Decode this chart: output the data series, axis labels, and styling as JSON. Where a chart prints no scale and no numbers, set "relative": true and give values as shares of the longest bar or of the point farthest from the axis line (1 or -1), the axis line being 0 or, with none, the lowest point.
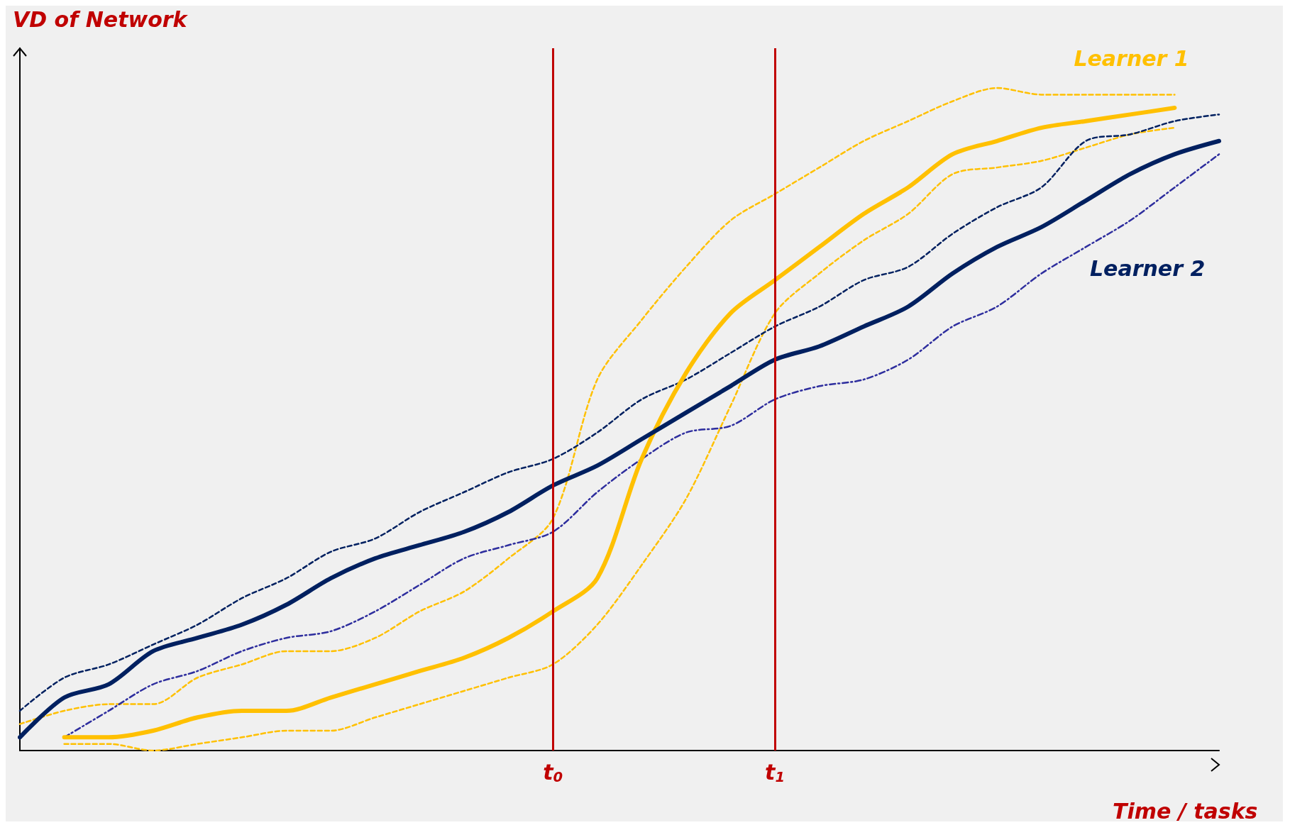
{
  "chart_data": {
    "type": "line",
    "relative": true,
    "ylabel": "VD of Network",
    "xlabel": "Time / tasks",
    "tick_labels": "x",
    "grid": false,
    "legend": false,
    "marker": "none",
    "categories": [
      null,
      null,
      null,
      null,
      null,
      null,
      null,
      null,
      null,
      null,
      null,
      null,
      "t$_{0}$",
      null,
      null,
      null,
      null,
      "t$_{1}$",
      null,
      null,
      null,
      null,
      null,
      null,
      null,
      null,
      null,
      null
    ],
    "series": [
      {
        "color": "#ffc000",
        "line_style": "dashed",
        "values": [
          0.04,
          0.06,
          0.07,
          0.07,
          0.11,
          0.13,
          0.15,
          0.15,
          0.17,
          0.21,
          0.24,
          0.29,
          0.35,
          0.56,
          0.65,
          0.73,
          0.8,
          0.84,
          0.88,
          0.92,
          0.95,
          0.98,
          1.0,
          0.99,
          0.99,
          0.99,
          0.99,
          null
        ]
      },
      {
        "color": "#ffc000",
        "line_style": "dashed",
        "values": [
          null,
          0.01,
          0.01,
          0.0,
          0.01,
          0.02,
          0.03,
          0.03,
          0.05,
          0.07,
          0.09,
          0.11,
          0.13,
          0.19,
          0.28,
          0.38,
          0.52,
          0.66,
          0.72,
          0.77,
          0.81,
          0.87,
          0.88,
          0.89,
          0.91,
          0.93,
          0.94,
          null
        ]
      },
      {
        "color": "#002060",
        "line_style": "dashed",
        "values": [
          0.06,
          0.11,
          0.13,
          0.16,
          0.19,
          0.23,
          0.26,
          0.3,
          0.32,
          0.36,
          0.39,
          0.42,
          0.44,
          0.48,
          0.53,
          0.56,
          0.6,
          0.64,
          0.67,
          0.71,
          0.73,
          0.78,
          0.82,
          0.85,
          0.92,
          0.93,
          0.95,
          0.96
        ]
      },
      {
        "color": "#2e2e9e",
        "line_style": "dotted",
        "values": [
          null,
          0.02,
          0.06,
          0.1,
          0.12,
          0.15,
          0.17,
          0.18,
          0.21,
          0.25,
          0.29,
          0.31,
          0.33,
          0.39,
          0.44,
          0.48,
          0.49,
          0.53,
          0.55,
          0.56,
          0.59,
          0.64,
          0.67,
          0.72,
          0.76,
          0.8,
          0.85,
          0.9
        ]
      },
      {
        "name": "Learner 1",
        "color": "#ffc000",
        "line_style": "solid",
        "values": [
          null,
          0.02,
          0.02,
          0.03,
          0.05,
          0.06,
          0.06,
          0.08,
          0.1,
          0.12,
          0.14,
          0.17,
          0.21,
          0.26,
          0.44,
          0.57,
          0.66,
          0.71,
          0.76,
          0.81,
          0.85,
          0.9,
          0.92,
          0.94,
          0.95,
          0.96,
          0.97,
          null
        ]
      },
      {
        "name": "Learner 2",
        "color": "#002060",
        "line_style": "solid",
        "values": [
          0.02,
          0.08,
          0.1,
          0.15,
          0.17,
          0.19,
          0.22,
          0.26,
          0.29,
          0.31,
          0.33,
          0.36,
          0.4,
          0.43,
          0.47,
          0.51,
          0.55,
          0.59,
          0.61,
          0.64,
          0.67,
          0.72,
          0.76,
          0.79,
          0.83,
          0.87,
          0.9,
          0.92
        ]
      }
    ],
    "ref_lines": [
      {
        "axis": "x",
        "value": "t$_{0}$",
        "color": "#c00000"
      },
      {
        "axis": "x",
        "value": "t$_{1}$",
        "color": "#c00000"
      }
    ]
  }
}
